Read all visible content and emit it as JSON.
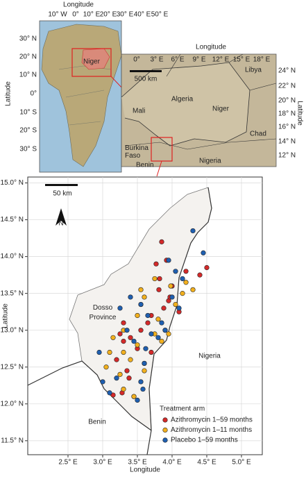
{
  "inset_africa": {
    "title": "Longitude",
    "ylabel": "Latitude",
    "xticks": [
      "10° W",
      "0°",
      "10° E",
      "20° E",
      "30° E",
      "40° E",
      "50° E"
    ],
    "yticks": [
      "30° N",
      "20° N",
      "10° N",
      "0°",
      "10° S",
      "20° S",
      "30° S"
    ],
    "label": "Niger"
  },
  "inset_niger": {
    "title": "Longitude",
    "ylabel": "Latitude",
    "xticks": [
      "0°",
      "3° E",
      "6° E",
      "9° E",
      "12° E",
      "15° E",
      "18° E"
    ],
    "yticks": [
      "24° N",
      "22° N",
      "20° N",
      "18° N",
      "16° N",
      "14° N",
      "12° N"
    ],
    "scale": "500 km",
    "labels": [
      "Libya",
      "Algeria",
      "Mali",
      "Niger",
      "Chad",
      "Burkina Faso",
      "Benin",
      "Nigeria"
    ]
  },
  "main_map": {
    "xlabel": "Longitude",
    "ylabel": "Latitude",
    "xlim": [
      1.92,
      5.3
    ],
    "ylim": [
      11.31,
      15.08
    ],
    "xticks": [
      {
        "value": 2.5,
        "label": "2.5° E"
      },
      {
        "value": 3.0,
        "label": "3.0° E"
      },
      {
        "value": 3.5,
        "label": "3.5° E"
      },
      {
        "value": 4.0,
        "label": "4.0° E"
      },
      {
        "value": 4.5,
        "label": "4.5° E"
      },
      {
        "value": 5.0,
        "label": "5.0° E"
      }
    ],
    "yticks": [
      {
        "value": 11.5,
        "label": "11.5° N"
      },
      {
        "value": 12.0,
        "label": "12.0° N"
      },
      {
        "value": 12.5,
        "label": "12.5° N"
      },
      {
        "value": 13.0,
        "label": "13.0° N"
      },
      {
        "value": 13.5,
        "label": "13.5° N"
      },
      {
        "value": 14.0,
        "label": "14.0° N"
      },
      {
        "value": 14.5,
        "label": "14.5° N"
      },
      {
        "value": 15.0,
        "label": "15.0° N"
      }
    ],
    "scale": "50 km",
    "north": "N",
    "labels": [
      "Dosso Province",
      "Nigeria",
      "Benin"
    ],
    "legend_title": "Treatment arm",
    "series": [
      {
        "name": "Azithromycin 1–59 months",
        "color": "#d42a2a",
        "lon": [
          3.85,
          3.92,
          3.77,
          3.81,
          3.95,
          3.88,
          3.7,
          3.65,
          3.55,
          3.4,
          3.3,
          3.2,
          3.5,
          3.6,
          3.38,
          3.28,
          3.15,
          3.45,
          3.3,
          3.25,
          3.55,
          3.82,
          4.0,
          3.97,
          4.1,
          4.2,
          4.4,
          4.5,
          3.7,
          3.35
        ],
        "lat": [
          14.2,
          13.95,
          13.9,
          13.55,
          13.4,
          13.3,
          13.2,
          13.1,
          13.0,
          12.9,
          12.85,
          12.6,
          12.75,
          12.55,
          12.35,
          12.15,
          12.12,
          12.1,
          13.1,
          12.95,
          13.35,
          13.7,
          13.6,
          13.45,
          13.25,
          13.8,
          13.75,
          13.85,
          12.7,
          12.45
        ]
      },
      {
        "name": "Azithromycin 1–11 months",
        "color": "#f2b01e",
        "lon": [
          3.98,
          4.2,
          4.15,
          4.3,
          3.9,
          3.75,
          3.8,
          3.6,
          3.5,
          3.3,
          3.15,
          3.1,
          3.05,
          3.4,
          3.45,
          3.6,
          3.55,
          3.25,
          3.3,
          3.75,
          3.85,
          3.95,
          4.05,
          3.3,
          3.5
        ],
        "lat": [
          13.6,
          13.65,
          13.5,
          13.55,
          13.0,
          12.95,
          13.15,
          13.45,
          13.2,
          13.0,
          12.9,
          12.7,
          12.5,
          12.6,
          12.1,
          12.45,
          13.55,
          12.4,
          12.2,
          13.7,
          12.85,
          12.95,
          13.35,
          12.7,
          12.8
        ]
      },
      {
        "name": "Placebo 1–59 months",
        "color": "#1f5fb0",
        "lon": [
          4.3,
          4.45,
          4.05,
          3.95,
          4.0,
          4.1,
          3.85,
          3.7,
          3.65,
          3.55,
          3.4,
          3.35,
          3.0,
          3.1,
          3.2,
          3.55,
          3.6,
          3.58,
          3.5,
          3.45,
          3.9,
          3.8,
          4.15,
          3.25,
          2.95,
          3.62
        ],
        "lat": [
          14.35,
          14.05,
          13.8,
          13.95,
          13.45,
          13.3,
          13.1,
          12.95,
          13.2,
          13.35,
          13.45,
          13.0,
          12.3,
          12.15,
          12.35,
          12.3,
          12.55,
          12.2,
          12.05,
          12.85,
          13.0,
          12.9,
          13.7,
          13.3,
          12.7,
          12.75
        ]
      }
    ]
  }
}
